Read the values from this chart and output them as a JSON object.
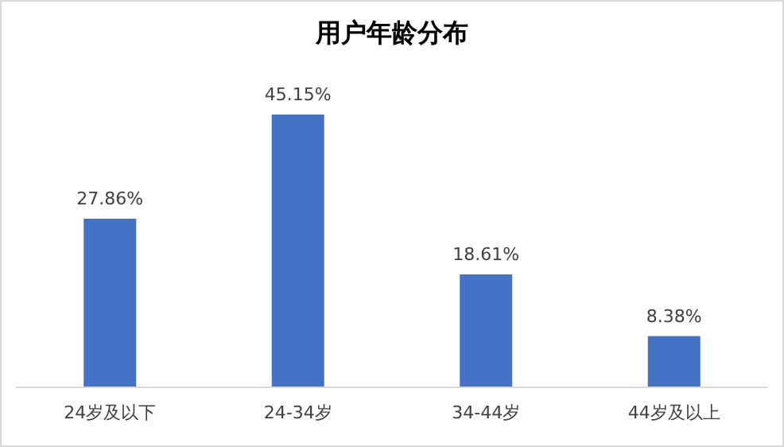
{
  "chart_data": {
    "type": "bar",
    "title": "用户年龄分布",
    "categories": [
      "24岁及以下",
      "24-34岁",
      "34-44岁",
      "44岁及以上"
    ],
    "values": [
      27.86,
      45.15,
      18.61,
      8.38
    ],
    "value_labels": [
      "27.86%",
      "45.15%",
      "18.61%",
      "8.38%"
    ],
    "color": "#4472c4"
  }
}
